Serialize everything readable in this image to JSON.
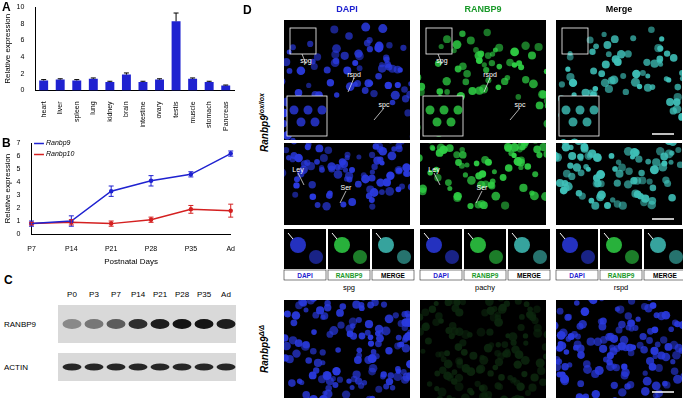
{
  "chart_data": [
    {
      "panel_label": "A",
      "type": "bar",
      "categories": [
        "heart",
        "liver",
        "spleen",
        "lung",
        "kidney",
        "brain",
        "intestine",
        "ovary",
        "testis",
        "muscle",
        "stomach",
        "Pancreas"
      ],
      "values": [
        1.2,
        1.3,
        1.2,
        1.4,
        1.0,
        1.9,
        1.0,
        1.3,
        8.3,
        1.4,
        1.0,
        0.6
      ],
      "errors": [
        0.1,
        0.1,
        0.1,
        0.1,
        0.1,
        0.2,
        0.1,
        0.1,
        1.0,
        0.1,
        0.1,
        0.05
      ],
      "color": "#1f22d0",
      "ylabel": "Relative expression",
      "ylim": [
        0,
        10
      ],
      "yticks": [
        0,
        2,
        4,
        6,
        8,
        10
      ],
      "grid": false
    },
    {
      "panel_label": "B",
      "type": "line",
      "categories": [
        "P7",
        "P14",
        "P21",
        "P28",
        "P35",
        "Ad"
      ],
      "series": [
        {
          "name": "Ranbp9",
          "color": "#1f22d0",
          "values": [
            0.8,
            1.0,
            3.3,
            4.1,
            4.6,
            6.2
          ],
          "errors": [
            0.2,
            0.4,
            0.4,
            0.4,
            0.2,
            0.2
          ]
        },
        {
          "name": "Ranbp10",
          "color": "#d42020",
          "values": [
            0.8,
            0.9,
            0.8,
            1.1,
            1.9,
            1.8
          ],
          "errors": [
            0.1,
            0.2,
            0.2,
            0.2,
            0.3,
            0.5
          ]
        }
      ],
      "xlabel": "Postnatal Days",
      "ylabel": "Relative expression",
      "ylim": [
        0,
        7
      ],
      "yticks": [
        0,
        1,
        2,
        3,
        4,
        5,
        6,
        7
      ],
      "legend": "top-left",
      "grid": false
    }
  ],
  "blot": {
    "panel_label": "C",
    "lanes": [
      "P0",
      "P3",
      "P7",
      "P14",
      "P21",
      "P28",
      "P35",
      "Ad"
    ],
    "rows": [
      "RANBP9",
      "ACTIN"
    ]
  },
  "micrograph": {
    "panel_label": "D",
    "columns": [
      "DAPI",
      "RANBP9",
      "Merge"
    ],
    "genotypes": [
      {
        "gene": "Ranbp9",
        "allele": "lox/lox"
      },
      {
        "gene": "Ranbp9",
        "allele": "Δ/Δ"
      }
    ],
    "tubule_labels": [
      "spg",
      "rspd",
      "spc"
    ],
    "interstitial_labels": [
      "Ley",
      "Ser"
    ],
    "inset_stains": [
      "DAPI",
      "RANBP9",
      "MERGE"
    ],
    "inset_cells": [
      "spg",
      "pachy",
      "rspd"
    ]
  }
}
